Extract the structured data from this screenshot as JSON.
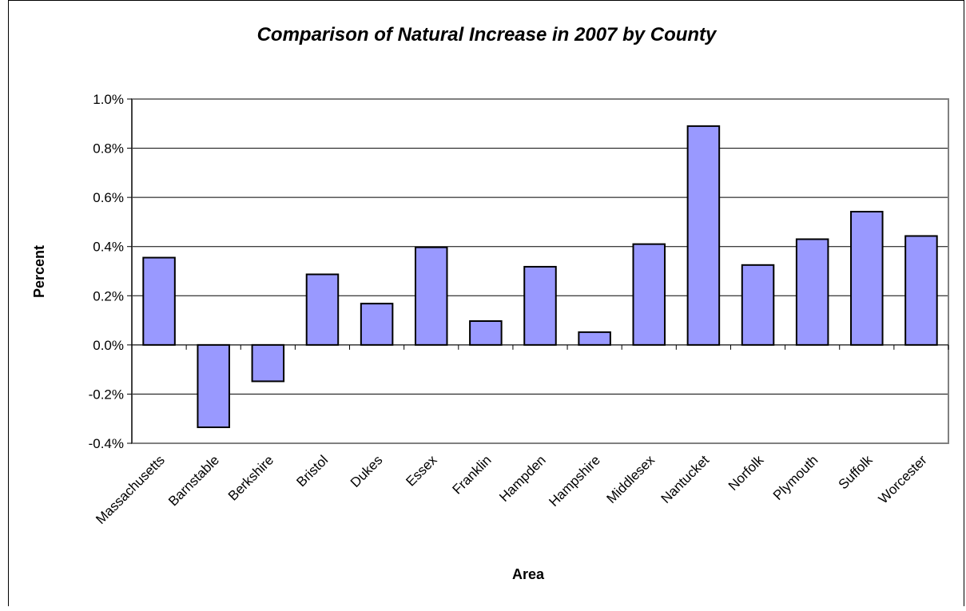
{
  "chart_data": {
    "type": "bar",
    "title": "Comparison of Natural Increase in 2007 by County",
    "xlabel": "Area",
    "ylabel": "Percent",
    "categories": [
      "Massachusetts",
      "Barnstable",
      "Berkshire",
      "Bristol",
      "Dukes",
      "Essex",
      "Franklin",
      "Hampden",
      "Hampshire",
      "Middlesex",
      "Nantucket",
      "Norfolk",
      "Plymouth",
      "Suffolk",
      "Worcester"
    ],
    "values": [
      0.355,
      -0.335,
      -0.148,
      0.287,
      0.168,
      0.397,
      0.097,
      0.318,
      0.052,
      0.41,
      0.89,
      0.325,
      0.43,
      0.542,
      0.443
    ],
    "value_unit": "%",
    "ylim": [
      -0.4,
      1.0
    ],
    "yticks": [
      "-0.4%",
      "-0.2%",
      "0.0%",
      "0.2%",
      "0.4%",
      "0.6%",
      "0.8%",
      "1.0%"
    ],
    "grid": true,
    "legend": "none",
    "bar_color": "#9999ff",
    "bar_border": "#000000"
  }
}
